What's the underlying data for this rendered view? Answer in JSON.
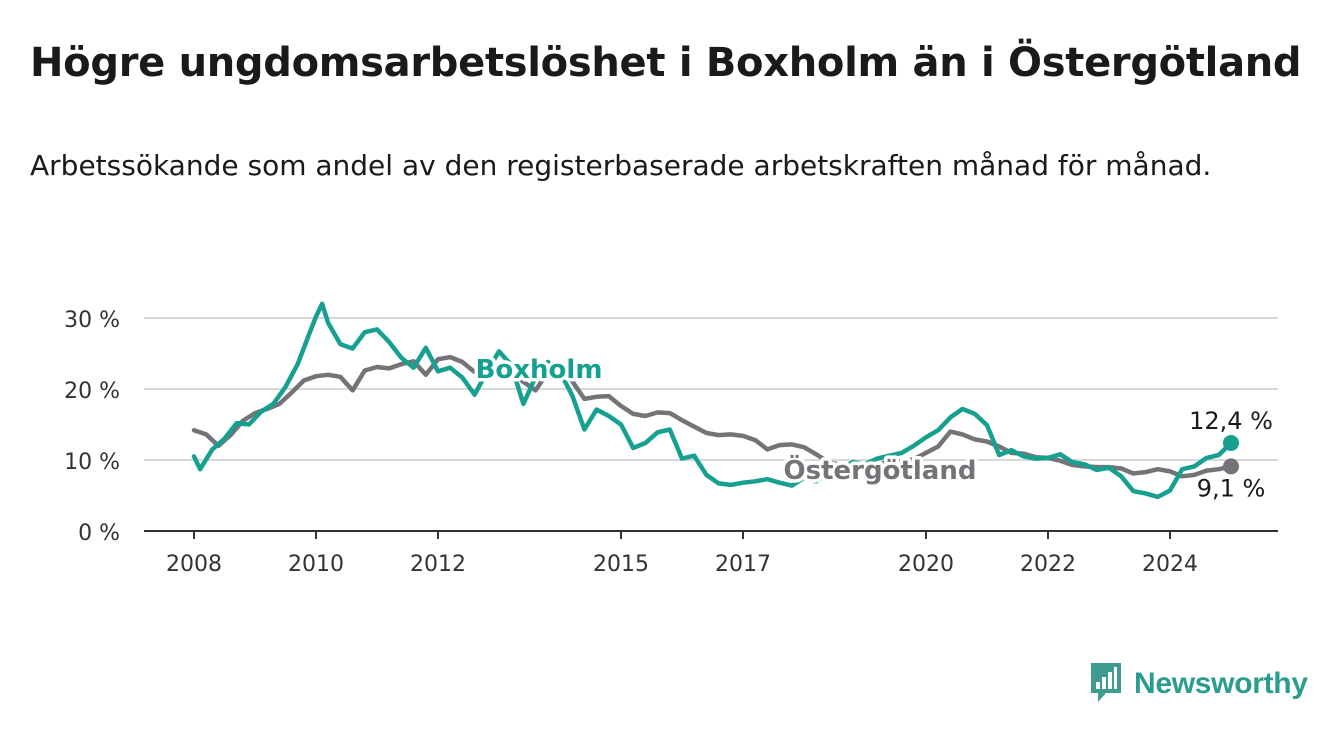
{
  "title": "Högre ungdomsarbetslöshet i Boxholm än i Östergötland",
  "subtitle": "Arbetssökande som andel av den registerbaserade arbetskraften månad för månad.",
  "brand": {
    "name": "Newsworthy",
    "icon": "bar-chart-icon",
    "color": "#3d9c8f"
  },
  "chart_data": {
    "type": "line",
    "title": "Högre ungdomsarbetslöshet i Boxholm än i Östergötland",
    "subtitle": "Arbetssökande som andel av den registerbaserade arbetskraften månad för månad.",
    "xlabel": "",
    "ylabel": "",
    "xlim": [
      2008,
      2025
    ],
    "ylim": [
      0,
      30
    ],
    "x_ticks": [
      2008,
      2010,
      2012,
      2015,
      2017,
      2020,
      2022,
      2024
    ],
    "y_ticks": [
      0,
      10,
      20,
      30
    ],
    "y_tick_labels": [
      "0 %",
      "10 %",
      "20 %",
      "30 %"
    ],
    "grid": true,
    "legend": "inline labels",
    "series": [
      {
        "name": "Östergötland",
        "color": "#747378",
        "end_label": "9,1 %",
        "points": [
          [
            2008.0,
            14.2
          ],
          [
            2008.2,
            13.6
          ],
          [
            2008.4,
            12.0
          ],
          [
            2008.6,
            13.5
          ],
          [
            2008.8,
            15.5
          ],
          [
            2009.0,
            16.6
          ],
          [
            2009.2,
            17.2
          ],
          [
            2009.4,
            17.9
          ],
          [
            2009.6,
            19.5
          ],
          [
            2009.8,
            21.2
          ],
          [
            2010.0,
            21.8
          ],
          [
            2010.2,
            22.0
          ],
          [
            2010.4,
            21.7
          ],
          [
            2010.6,
            19.8
          ],
          [
            2010.8,
            22.6
          ],
          [
            2011.0,
            23.1
          ],
          [
            2011.2,
            22.9
          ],
          [
            2011.4,
            23.5
          ],
          [
            2011.6,
            23.9
          ],
          [
            2011.8,
            22.0
          ],
          [
            2012.0,
            24.2
          ],
          [
            2012.2,
            24.5
          ],
          [
            2012.4,
            23.8
          ],
          [
            2012.6,
            22.4
          ],
          [
            2012.8,
            22.8
          ],
          [
            2013.0,
            23.2
          ],
          [
            2013.2,
            22.4
          ],
          [
            2013.4,
            21.0
          ],
          [
            2013.6,
            19.8
          ],
          [
            2013.8,
            22.4
          ],
          [
            2014.0,
            22.9
          ],
          [
            2014.2,
            21.1
          ],
          [
            2014.4,
            18.6
          ],
          [
            2014.6,
            18.9
          ],
          [
            2014.8,
            19.0
          ],
          [
            2015.0,
            17.6
          ],
          [
            2015.2,
            16.5
          ],
          [
            2015.4,
            16.2
          ],
          [
            2015.6,
            16.7
          ],
          [
            2015.8,
            16.6
          ],
          [
            2016.0,
            15.6
          ],
          [
            2016.2,
            14.7
          ],
          [
            2016.4,
            13.8
          ],
          [
            2016.6,
            13.5
          ],
          [
            2016.8,
            13.6
          ],
          [
            2017.0,
            13.4
          ],
          [
            2017.2,
            12.8
          ],
          [
            2017.4,
            11.5
          ],
          [
            2017.6,
            12.1
          ],
          [
            2017.8,
            12.2
          ],
          [
            2018.0,
            11.8
          ],
          [
            2018.2,
            10.8
          ],
          [
            2018.4,
            9.7
          ],
          [
            2018.6,
            9.3
          ],
          [
            2018.8,
            9.1
          ],
          [
            2019.0,
            9.2
          ],
          [
            2019.2,
            9.4
          ],
          [
            2019.4,
            9.7
          ],
          [
            2019.6,
            9.8
          ],
          [
            2019.8,
            10.1
          ],
          [
            2020.0,
            11.0
          ],
          [
            2020.2,
            11.9
          ],
          [
            2020.4,
            14.0
          ],
          [
            2020.6,
            13.6
          ],
          [
            2020.8,
            12.9
          ],
          [
            2021.0,
            12.6
          ],
          [
            2021.2,
            11.9
          ],
          [
            2021.4,
            11.0
          ],
          [
            2021.6,
            10.9
          ],
          [
            2021.8,
            10.4
          ],
          [
            2022.0,
            10.3
          ],
          [
            2022.2,
            9.9
          ],
          [
            2022.4,
            9.3
          ],
          [
            2022.6,
            9.1
          ],
          [
            2022.8,
            9.0
          ],
          [
            2023.0,
            9.0
          ],
          [
            2023.2,
            8.8
          ],
          [
            2023.4,
            8.1
          ],
          [
            2023.6,
            8.3
          ],
          [
            2023.8,
            8.7
          ],
          [
            2024.0,
            8.4
          ],
          [
            2024.2,
            7.7
          ],
          [
            2024.4,
            7.9
          ],
          [
            2024.6,
            8.5
          ],
          [
            2024.8,
            8.7
          ],
          [
            2025.0,
            9.1
          ]
        ]
      },
      {
        "name": "Boxholm",
        "color": "#15a08f",
        "end_label": "12,4 %",
        "points": [
          [
            2008.0,
            10.5
          ],
          [
            2008.1,
            8.7
          ],
          [
            2008.3,
            11.5
          ],
          [
            2008.5,
            13.0
          ],
          [
            2008.7,
            15.2
          ],
          [
            2008.9,
            15.0
          ],
          [
            2009.1,
            16.8
          ],
          [
            2009.3,
            17.9
          ],
          [
            2009.5,
            20.3
          ],
          [
            2009.7,
            23.5
          ],
          [
            2009.9,
            28.0
          ],
          [
            2010.0,
            30.2
          ],
          [
            2010.1,
            32.0
          ],
          [
            2010.2,
            29.3
          ],
          [
            2010.4,
            26.3
          ],
          [
            2010.6,
            25.7
          ],
          [
            2010.8,
            28.0
          ],
          [
            2011.0,
            28.4
          ],
          [
            2011.2,
            26.6
          ],
          [
            2011.4,
            24.4
          ],
          [
            2011.6,
            23.0
          ],
          [
            2011.8,
            25.8
          ],
          [
            2012.0,
            22.5
          ],
          [
            2012.2,
            23.0
          ],
          [
            2012.4,
            21.6
          ],
          [
            2012.6,
            19.2
          ],
          [
            2012.8,
            22.4
          ],
          [
            2013.0,
            25.3
          ],
          [
            2013.2,
            23.4
          ],
          [
            2013.4,
            17.9
          ],
          [
            2013.6,
            21.7
          ],
          [
            2013.8,
            23.8
          ],
          [
            2014.0,
            22.4
          ],
          [
            2014.2,
            19.1
          ],
          [
            2014.4,
            14.3
          ],
          [
            2014.6,
            17.1
          ],
          [
            2014.8,
            16.2
          ],
          [
            2015.0,
            15.0
          ],
          [
            2015.2,
            11.7
          ],
          [
            2015.4,
            12.4
          ],
          [
            2015.6,
            13.9
          ],
          [
            2015.8,
            14.3
          ],
          [
            2016.0,
            10.2
          ],
          [
            2016.2,
            10.6
          ],
          [
            2016.4,
            7.9
          ],
          [
            2016.6,
            6.7
          ],
          [
            2016.8,
            6.5
          ],
          [
            2017.0,
            6.8
          ],
          [
            2017.2,
            7.0
          ],
          [
            2017.4,
            7.3
          ],
          [
            2017.6,
            6.8
          ],
          [
            2017.8,
            6.4
          ],
          [
            2018.0,
            7.5
          ],
          [
            2018.2,
            7.0
          ],
          [
            2018.4,
            8.2
          ],
          [
            2018.6,
            8.8
          ],
          [
            2018.8,
            9.7
          ],
          [
            2019.0,
            9.4
          ],
          [
            2019.2,
            10.2
          ],
          [
            2019.4,
            10.6
          ],
          [
            2019.6,
            11.0
          ],
          [
            2019.8,
            12.0
          ],
          [
            2020.0,
            13.2
          ],
          [
            2020.2,
            14.2
          ],
          [
            2020.4,
            16.0
          ],
          [
            2020.6,
            17.2
          ],
          [
            2020.8,
            16.5
          ],
          [
            2021.0,
            14.9
          ],
          [
            2021.2,
            10.7
          ],
          [
            2021.4,
            11.4
          ],
          [
            2021.6,
            10.5
          ],
          [
            2021.8,
            10.2
          ],
          [
            2022.0,
            10.3
          ],
          [
            2022.2,
            10.8
          ],
          [
            2022.4,
            9.7
          ],
          [
            2022.6,
            9.4
          ],
          [
            2022.8,
            8.6
          ],
          [
            2023.0,
            8.9
          ],
          [
            2023.2,
            7.7
          ],
          [
            2023.4,
            5.6
          ],
          [
            2023.6,
            5.3
          ],
          [
            2023.8,
            4.8
          ],
          [
            2024.0,
            5.7
          ],
          [
            2024.2,
            8.7
          ],
          [
            2024.4,
            9.1
          ],
          [
            2024.6,
            10.3
          ],
          [
            2024.8,
            10.7
          ],
          [
            2025.0,
            12.4
          ]
        ]
      }
    ]
  }
}
